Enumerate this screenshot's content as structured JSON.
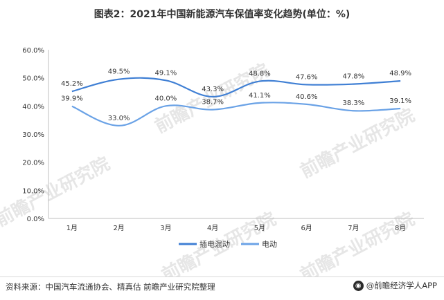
{
  "chart_data": {
    "type": "line",
    "title": "图表2：2021年中国新能源汽车保值率变化趋势(单位：%)",
    "categories": [
      "1月",
      "2月",
      "3月",
      "4月",
      "5月",
      "6月",
      "7月",
      "8月"
    ],
    "series": [
      {
        "name": "插电混动",
        "values": [
          45.2,
          49.5,
          49.1,
          43.3,
          48.8,
          47.6,
          47.8,
          48.9
        ],
        "labels": [
          "45.2%",
          "49.5%",
          "49.1%",
          "43.3%",
          "48.8%",
          "47.6%",
          "47.8%",
          "48.9%"
        ],
        "color": "#3f7fd4"
      },
      {
        "name": "电动",
        "values": [
          39.9,
          33.0,
          40.0,
          38.7,
          41.1,
          40.6,
          38.3,
          39.1
        ],
        "labels": [
          "39.9%",
          "33.0%",
          "40.0%",
          "38.7%",
          "41.1%",
          "40.6%",
          "38.3%",
          "39.1%"
        ],
        "color": "#6aa2e6"
      }
    ],
    "ylim": [
      0,
      60
    ],
    "yticks": [
      0,
      10,
      20,
      30,
      40,
      50,
      60
    ],
    "ytick_labels": [
      "0.0%",
      "10.0%",
      "20.0%",
      "30.0%",
      "40.0%",
      "50.0%",
      "60.0%"
    ],
    "grid": false,
    "legend_position": "bottom"
  },
  "source_text": "资料来源：中国汽车流通协会、精真估 前瞻产业研究院整理",
  "brand_text": "@前瞻经济学人APP",
  "watermark_text": "前瞻产业研究院",
  "brand_icon": "qianzhan-logo-icon"
}
